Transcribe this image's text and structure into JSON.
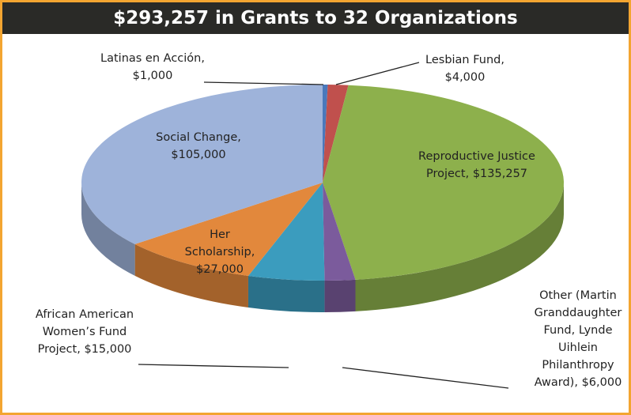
{
  "chart_data": {
    "type": "pie3d",
    "title": "$293,257 in Grants to 32 Organizations",
    "categories": [
      "Latinas en Acción,",
      "Lesbian Fund,",
      "Reproductive Justice Project,",
      "Other (Martin Granddaughter Fund, Lynde Uihlein Philanthropy Award),",
      "African American Women’s Fund Project,",
      "Her Scholarship,",
      "Social Change,"
    ],
    "values": [
      1000,
      4000,
      135257,
      6000,
      15000,
      27000,
      105000
    ],
    "value_labels": [
      "$1,000",
      "$4,000",
      "$135,257",
      "$6,000",
      "$15,000",
      "$27,000",
      "$105,000"
    ],
    "colors": [
      "#4a78bb",
      "#c0504d",
      "#8db04c",
      "#7b5b9c",
      "#3b9cbe",
      "#e2883c",
      "#9eb3da"
    ]
  }
}
